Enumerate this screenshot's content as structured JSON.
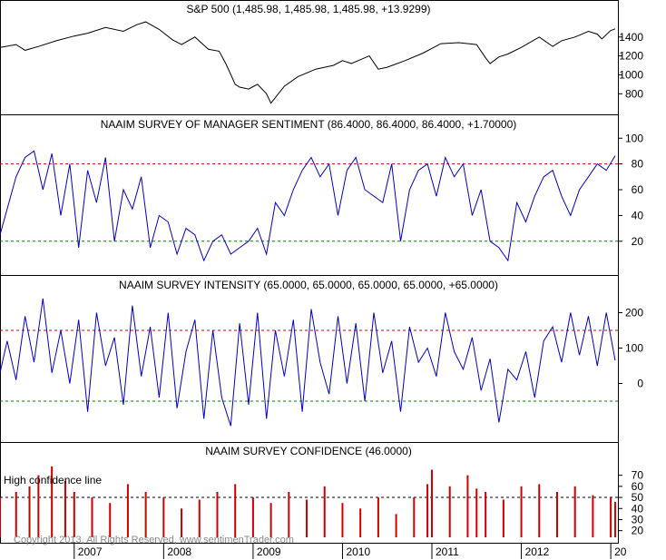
{
  "colors": {
    "background": "#ffffff",
    "frame": "#000000",
    "price_line": "#000000",
    "series_line": "#0000c8",
    "bars": "#cc0000",
    "upper_ref": "#cc0000",
    "lower_ref": "#008000",
    "confidence_ref": "#000000"
  },
  "watermark": "Copyright 2013, All Rights Reserved, www.sentimenTrader.com",
  "x_axis": {
    "start": 2006.17,
    "end": 2013.08,
    "years": [
      {
        "value": 2007.0,
        "label": "2007"
      },
      {
        "value": 2008.0,
        "label": "2008"
      },
      {
        "value": 2009.0,
        "label": "2009"
      },
      {
        "value": 2010.0,
        "label": "2010"
      },
      {
        "value": 2011.0,
        "label": "2011"
      },
      {
        "value": 2012.0,
        "label": "2012"
      },
      {
        "value": 2013.0,
        "label": "20"
      }
    ],
    "grid": false
  },
  "chart_data": [
    {
      "type": "line",
      "title": "S&P 500 (1,485.98, 1,485.98, 1,485.98, +13.9299)",
      "ylim": [
        640,
        1580
      ],
      "yticks": [
        {
          "v": 800,
          "l": "800"
        },
        {
          "v": 1000,
          "l": "1000"
        },
        {
          "v": 1200,
          "l": "1200"
        },
        {
          "v": 1400,
          "l": "1400"
        }
      ],
      "series": [
        {
          "x": [
            2006.17,
            2006.35,
            2006.45,
            2006.6,
            2006.8,
            2007.0,
            2007.15,
            2007.35,
            2007.55,
            2007.7,
            2007.8,
            2007.95,
            2008.1,
            2008.2,
            2008.35,
            2008.5,
            2008.62,
            2008.7,
            2008.8,
            2008.85,
            2008.95,
            2009.05,
            2009.15,
            2009.2,
            2009.35,
            2009.5,
            2009.7,
            2009.9,
            2010.0,
            2010.1,
            2010.3,
            2010.4,
            2010.5,
            2010.7,
            2010.9,
            2011.0,
            2011.1,
            2011.3,
            2011.5,
            2011.6,
            2011.65,
            2011.75,
            2011.85,
            2012.0,
            2012.2,
            2012.35,
            2012.45,
            2012.6,
            2012.75,
            2012.85,
            2012.9,
            2013.0,
            2013.05
          ],
          "y": [
            1290,
            1320,
            1260,
            1300,
            1360,
            1410,
            1440,
            1500,
            1460,
            1530,
            1560,
            1480,
            1370,
            1320,
            1400,
            1270,
            1250,
            1110,
            900,
            870,
            850,
            900,
            800,
            700,
            880,
            980,
            1060,
            1100,
            1150,
            1120,
            1200,
            1060,
            1080,
            1150,
            1230,
            1280,
            1330,
            1340,
            1320,
            1180,
            1120,
            1190,
            1220,
            1290,
            1400,
            1300,
            1360,
            1400,
            1460,
            1430,
            1380,
            1470,
            1486
          ]
        }
      ],
      "xlabel": "",
      "ylabel": ""
    },
    {
      "type": "line",
      "title": "NAAIM SURVEY OF MANAGER SENTIMENT (86.4000, 86.4000, 86.4000, +1.70000)",
      "ylim": [
        -2,
        103
      ],
      "yticks": [
        {
          "v": 20,
          "l": "20"
        },
        {
          "v": 40,
          "l": "40"
        },
        {
          "v": 60,
          "l": "60"
        },
        {
          "v": 80,
          "l": "80"
        },
        {
          "v": 100,
          "l": "100"
        }
      ],
      "reference_lines": [
        {
          "value": 80,
          "color": "red"
        },
        {
          "value": 20,
          "color": "green"
        }
      ],
      "series": [
        {
          "x": [
            2006.17,
            2006.25,
            2006.35,
            2006.45,
            2006.55,
            2006.65,
            2006.75,
            2006.85,
            2006.95,
            2007.05,
            2007.15,
            2007.25,
            2007.35,
            2007.45,
            2007.55,
            2007.65,
            2007.75,
            2007.85,
            2007.95,
            2008.05,
            2008.15,
            2008.25,
            2008.35,
            2008.45,
            2008.55,
            2008.65,
            2008.75,
            2008.85,
            2008.95,
            2009.05,
            2009.15,
            2009.25,
            2009.35,
            2009.45,
            2009.55,
            2009.65,
            2009.75,
            2009.85,
            2009.95,
            2010.05,
            2010.15,
            2010.25,
            2010.35,
            2010.45,
            2010.55,
            2010.65,
            2010.75,
            2010.85,
            2010.95,
            2011.05,
            2011.15,
            2011.25,
            2011.35,
            2011.45,
            2011.55,
            2011.65,
            2011.75,
            2011.85,
            2011.95,
            2012.05,
            2012.15,
            2012.25,
            2012.35,
            2012.45,
            2012.55,
            2012.65,
            2012.75,
            2012.85,
            2012.95,
            2013.05
          ],
          "y": [
            25,
            45,
            70,
            85,
            90,
            60,
            88,
            40,
            80,
            15,
            75,
            50,
            85,
            20,
            60,
            45,
            70,
            15,
            40,
            35,
            10,
            30,
            25,
            5,
            20,
            25,
            10,
            15,
            20,
            30,
            10,
            50,
            40,
            60,
            75,
            85,
            70,
            80,
            40,
            75,
            85,
            60,
            55,
            50,
            80,
            20,
            60,
            75,
            80,
            55,
            85,
            70,
            80,
            40,
            60,
            20,
            15,
            5,
            50,
            35,
            55,
            70,
            75,
            55,
            40,
            60,
            70,
            80,
            75,
            86.4
          ]
        }
      ],
      "xlabel": "",
      "ylabel": ""
    },
    {
      "type": "line",
      "title": "NAAIM SURVEY INTENSITY (65.0000, 65.0000, 65.0000, 65.0000, +65.0000)",
      "ylim": [
        -150,
        250
      ],
      "yticks": [
        {
          "v": 0,
          "l": "0"
        },
        {
          "v": 100,
          "l": "100"
        },
        {
          "v": 200,
          "l": "200"
        }
      ],
      "reference_lines": [
        {
          "value": 150,
          "color": "red"
        },
        {
          "value": -50,
          "color": "green"
        }
      ],
      "series": [
        {
          "x": [
            2006.17,
            2006.25,
            2006.35,
            2006.45,
            2006.55,
            2006.65,
            2006.75,
            2006.85,
            2006.95,
            2007.05,
            2007.15,
            2007.25,
            2007.35,
            2007.45,
            2007.55,
            2007.65,
            2007.75,
            2007.85,
            2007.95,
            2008.05,
            2008.15,
            2008.25,
            2008.35,
            2008.45,
            2008.55,
            2008.65,
            2008.75,
            2008.85,
            2008.95,
            2009.05,
            2009.15,
            2009.25,
            2009.35,
            2009.45,
            2009.55,
            2009.65,
            2009.75,
            2009.85,
            2009.95,
            2010.05,
            2010.15,
            2010.25,
            2010.35,
            2010.45,
            2010.55,
            2010.65,
            2010.75,
            2010.85,
            2010.95,
            2011.05,
            2011.15,
            2011.25,
            2011.35,
            2011.45,
            2011.55,
            2011.65,
            2011.75,
            2011.85,
            2011.95,
            2012.05,
            2012.15,
            2012.25,
            2012.35,
            2012.45,
            2012.55,
            2012.65,
            2012.75,
            2012.85,
            2012.95,
            2013.05
          ],
          "y": [
            30,
            120,
            10,
            190,
            60,
            240,
            30,
            150,
            0,
            180,
            -80,
            200,
            50,
            130,
            -60,
            220,
            20,
            160,
            -40,
            200,
            -70,
            90,
            180,
            -100,
            150,
            -40,
            -120,
            170,
            -60,
            200,
            -100,
            150,
            20,
            180,
            -80,
            210,
            60,
            -30,
            190,
            0,
            170,
            -50,
            200,
            30,
            120,
            -80,
            160,
            60,
            100,
            20,
            200,
            90,
            40,
            130,
            -20,
            70,
            -110,
            40,
            10,
            90,
            -40,
            120,
            160,
            60,
            200,
            80,
            190,
            50,
            200,
            65
          ]
        }
      ],
      "xlabel": "",
      "ylabel": ""
    },
    {
      "type": "bar",
      "title": "NAAIM SURVEY CONFIDENCE (46.0000)",
      "ylim": [
        14,
        82
      ],
      "yticks": [
        {
          "v": 20,
          "l": "20"
        },
        {
          "v": 30,
          "l": "30"
        },
        {
          "v": 40,
          "l": "40"
        },
        {
          "v": 50,
          "l": "50"
        },
        {
          "v": 60,
          "l": "60"
        },
        {
          "v": 70,
          "l": "70"
        }
      ],
      "reference_lines": [
        {
          "value": 50,
          "color": "black",
          "label": "High confidence line"
        }
      ],
      "series": [
        {
          "x": [
            2006.17,
            2006.35,
            2006.5,
            2006.6,
            2006.75,
            2006.9,
            2007.0,
            2007.2,
            2007.4,
            2007.6,
            2007.8,
            2008.0,
            2008.2,
            2008.4,
            2008.6,
            2008.8,
            2009.0,
            2009.2,
            2009.4,
            2009.6,
            2009.8,
            2010.0,
            2010.2,
            2010.4,
            2010.6,
            2010.8,
            2010.95,
            2011.0,
            2011.2,
            2011.4,
            2011.5,
            2011.6,
            2011.8,
            2012.0,
            2012.2,
            2012.4,
            2012.6,
            2012.8,
            2013.0,
            2013.05
          ],
          "y": [
            50,
            55,
            60,
            70,
            78,
            65,
            55,
            50,
            45,
            62,
            55,
            50,
            40,
            48,
            55,
            62,
            50,
            45,
            55,
            48,
            60,
            45,
            40,
            50,
            35,
            50,
            62,
            75,
            60,
            70,
            58,
            55,
            48,
            60,
            62,
            55,
            60,
            52,
            50,
            46
          ]
        }
      ],
      "xlabel": "",
      "ylabel": ""
    }
  ]
}
